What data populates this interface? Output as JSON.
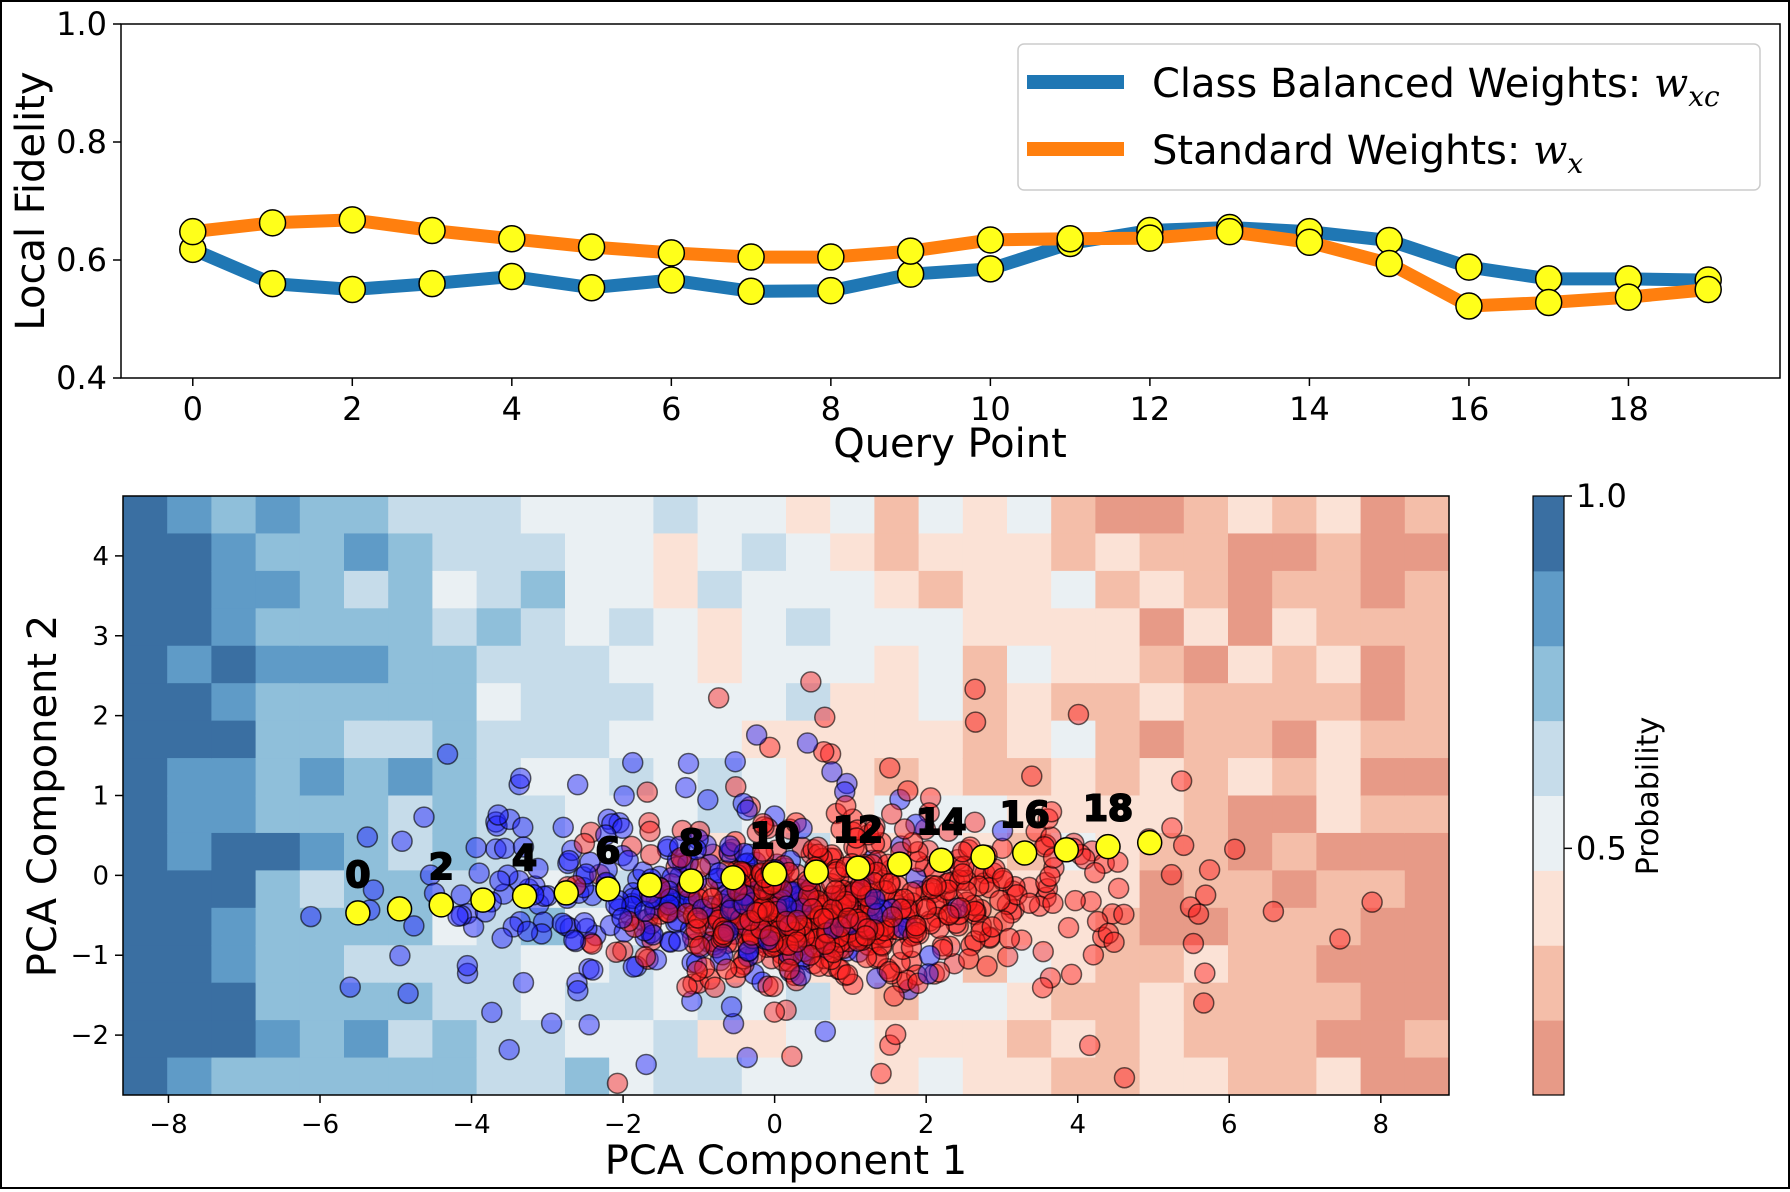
{
  "chart_data": [
    {
      "type": "line",
      "xlabel": "Query Point",
      "ylabel": "Local Fidelity",
      "xlim": [
        -0.9,
        19.9
      ],
      "ylim": [
        0.4,
        1.0
      ],
      "xticks": [
        0,
        2,
        4,
        6,
        8,
        10,
        12,
        14,
        16,
        18
      ],
      "yticks": [
        0.4,
        0.6,
        0.8,
        1.0
      ],
      "ytick_labels": [
        "0.4",
        "0.6",
        "0.8",
        "1.0"
      ],
      "legend_position": "top-right",
      "marker_color": "#ffff1a",
      "x": [
        0,
        1,
        2,
        3,
        4,
        5,
        6,
        7,
        8,
        9,
        10,
        11,
        12,
        13,
        14,
        15,
        16,
        17,
        18,
        19
      ],
      "series": [
        {
          "legend_prefix": "Class Balanced Weights: ",
          "legend_math": "w",
          "legend_sub": "xc",
          "color": "#1f77b4",
          "values": [
            0.618,
            0.56,
            0.55,
            0.56,
            0.572,
            0.553,
            0.566,
            0.547,
            0.548,
            0.576,
            0.585,
            0.628,
            0.65,
            0.655,
            0.648,
            0.633,
            0.588,
            0.568,
            0.568,
            0.566
          ]
        },
        {
          "legend_prefix": "Standard Weights: ",
          "legend_math": "w",
          "legend_sub": "x",
          "color": "#ff7f0e",
          "values": [
            0.648,
            0.663,
            0.668,
            0.65,
            0.636,
            0.622,
            0.612,
            0.605,
            0.605,
            0.615,
            0.634,
            0.636,
            0.637,
            0.648,
            0.63,
            0.594,
            0.522,
            0.528,
            0.537,
            0.55
          ]
        }
      ]
    },
    {
      "type": "scatter",
      "xlabel": "PCA Component 1",
      "ylabel": "PCA Component 2",
      "xlim": [
        -8.6,
        8.9
      ],
      "ylim": [
        -2.75,
        4.75
      ],
      "xticks": [
        -8,
        -6,
        -4,
        -2,
        0,
        2,
        4,
        6,
        8
      ],
      "xtick_labels": [
        "−8",
        "−6",
        "−4",
        "−2",
        "0",
        "2",
        "4",
        "6",
        "8"
      ],
      "yticks": [
        -2,
        -1,
        0,
        1,
        2,
        3,
        4
      ],
      "ytick_labels": [
        "−2",
        "−1",
        "0",
        "1",
        "2",
        "3",
        "4"
      ],
      "background": "filled contour of class probability (blue = 1.0, red = 0.0)",
      "colorbar": {
        "label": "Probability",
        "ticks": [
          "1.0",
          "0.5"
        ],
        "tick_values": [
          1.0,
          0.5
        ],
        "range": [
          0.15,
          1.0
        ],
        "colors": [
          "#e79a87",
          "#f4bea9",
          "#fbe2d6",
          "#eaf0f3",
          "#c6dcea",
          "#8fbfda",
          "#5f9bc7",
          "#3a6fa2"
        ]
      },
      "contour_columns_probability": [
        0.98,
        0.92,
        0.86,
        0.8,
        0.75,
        0.72,
        0.7,
        0.67,
        0.64,
        0.6,
        0.58,
        0.55,
        0.52,
        0.5,
        0.48,
        0.5,
        0.46,
        0.43,
        0.45,
        0.4,
        0.38,
        0.4,
        0.36,
        0.33,
        0.35,
        0.3,
        0.28,
        0.3,
        0.26,
        0.22
      ],
      "class_colors": [
        "#1a1aff",
        "#ff1a1a"
      ],
      "query_points": {
        "marker_color": "#ffff1a",
        "x": [
          -5.5,
          -4.95,
          -4.4,
          -3.85,
          -3.3,
          -2.75,
          -2.2,
          -1.65,
          -1.1,
          -0.55,
          0.0,
          0.55,
          1.1,
          1.65,
          2.2,
          2.75,
          3.3,
          3.85,
          4.4,
          4.95
        ],
        "y": [
          -0.47,
          -0.42,
          -0.37,
          -0.31,
          -0.26,
          -0.22,
          -0.17,
          -0.12,
          -0.07,
          -0.03,
          0.02,
          0.04,
          0.09,
          0.14,
          0.19,
          0.23,
          0.28,
          0.32,
          0.36,
          0.41
        ],
        "labels": [
          "0",
          "2",
          "4",
          "6",
          "8",
          "10",
          "12",
          "14",
          "16",
          "18"
        ],
        "labeled_indices": [
          0,
          2,
          4,
          6,
          8,
          10,
          12,
          14,
          16,
          18
        ]
      }
    }
  ]
}
